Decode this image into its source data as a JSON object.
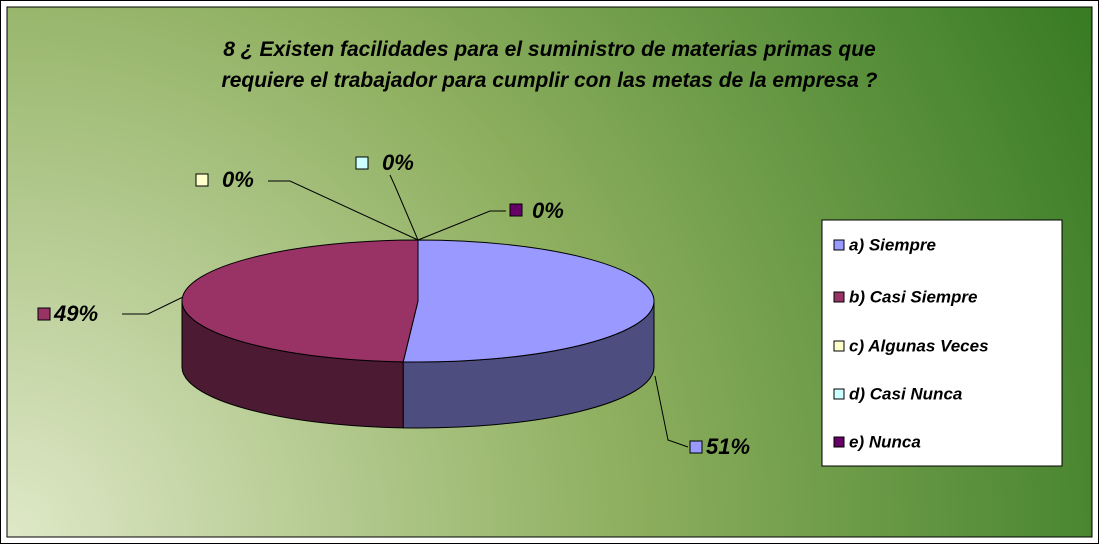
{
  "chart_data": {
    "type": "pie3d",
    "title": "8 ¿ Existen facilidades para el suministro de materias primas que\nrequiere el trabajador para cumplir con las metas de la empresa ?",
    "categories": [
      "a) Siempre",
      "b) Casi Siempre",
      "c) Algunas Veces",
      "d) Casi Nunca",
      "e) Nunca"
    ],
    "values": [
      51,
      49,
      0,
      0,
      0
    ],
    "value_labels": [
      "51%",
      "49%",
      "0%",
      "0%",
      "0%"
    ],
    "colors": [
      "#9999ff",
      "#993366",
      "#ffffcc",
      "#ccffff",
      "#660066"
    ],
    "legend": "right"
  }
}
